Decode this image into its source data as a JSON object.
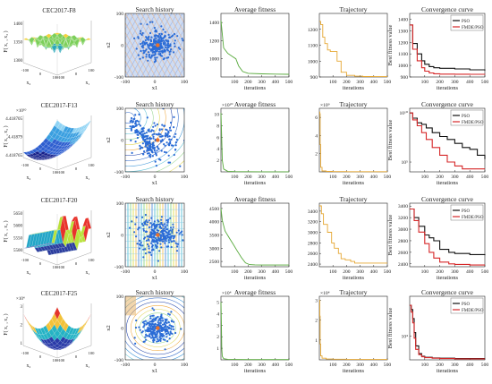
{
  "chart_data": [
    {
      "row": 0,
      "function_title": "CEC2017-F8",
      "surface_zlabel": "F( x₁ , x₂ )",
      "surface_ticks": [
        "1400",
        "1350",
        "1300"
      ],
      "surface_xticks": [
        "-100",
        "0",
        "100",
        "-100",
        "0",
        "100"
      ],
      "surface_axis_labels": [
        "x₂",
        "x₁"
      ],
      "surface_colors": [
        "#2c56c7",
        "#2aa7b9",
        "#7ccf5a",
        "#f5d13c"
      ],
      "history": {
        "title": "Search history",
        "xlabel": "x1",
        "ylabel": "x2",
        "xticks": [
          "-100",
          "0",
          "100"
        ],
        "yticks": [
          "100",
          "0",
          "-100"
        ],
        "spread": 22
      },
      "average_fitness": {
        "title": "Average fitness",
        "type": "line",
        "color": "#56a93a",
        "xlabel": "iterations",
        "x": [
          0,
          20,
          50,
          80,
          110,
          130,
          160,
          200,
          300,
          400,
          500
        ],
        "y": [
          1420,
          1120,
          1060,
          1030,
          1000,
          920,
          860,
          840,
          835,
          832,
          830
        ],
        "ylim": [
          800,
          1500
        ],
        "yticks": [
          "1400",
          "1200",
          "1000"
        ],
        "xticks": [
          "100",
          "200",
          "300",
          "400",
          "500"
        ]
      },
      "trajectory": {
        "title": "Trajectory",
        "type": "line",
        "color": "#e5a630",
        "xlabel": "iterations",
        "x": [
          0,
          10,
          25,
          40,
          60,
          80,
          100,
          130,
          160,
          200,
          260,
          320,
          400,
          500
        ],
        "y": [
          1250,
          1230,
          1150,
          1110,
          1070,
          1060,
          1060,
          1000,
          930,
          910,
          905,
          903,
          902,
          902
        ],
        "ylim": [
          900,
          1300
        ],
        "yticks": [
          "1200",
          "1100",
          "1000",
          "900"
        ],
        "xticks": [
          "100",
          "200",
          "300",
          "400",
          "500"
        ]
      },
      "convergence": {
        "title": "Convergence curve",
        "type": "line",
        "ylabel": "Best fitness value",
        "xlabel": "iterations",
        "legend": [
          "PSO",
          "FMDE/PSO"
        ],
        "x": [
          0,
          20,
          50,
          80,
          100,
          130,
          160,
          200,
          300,
          400,
          500
        ],
        "series": [
          {
            "name": "PSO",
            "color": "#111111",
            "values": [
              1350,
              1190,
              1100,
              1040,
              1010,
              990,
              980,
              975,
              970,
              962,
              955
            ]
          },
          {
            "name": "FMDE/PSO",
            "color": "#d62728",
            "values": [
              1350,
              1140,
              1040,
              980,
              950,
              935,
              928,
              925,
              924,
              923,
              922
            ]
          }
        ],
        "ylim": [
          900,
          1450
        ],
        "yticks": [
          "1400",
          "1300",
          "1200",
          "1100",
          "1000",
          "900"
        ],
        "xticks": [
          "100",
          "200",
          "300",
          "400",
          "500"
        ]
      }
    },
    {
      "row": 1,
      "function_title": "CEC2017-F13",
      "surface_zlabel": "F( x₁ , x₂ )",
      "surface_exponent": "×10¹⁰",
      "surface_ticks": [
        "4.418705",
        "4.41879",
        "4.418765"
      ],
      "surface_xticks": [
        "-100",
        "0",
        "100",
        "-100",
        "0",
        "100"
      ],
      "surface_axis_labels": [
        "x₂",
        "x₁"
      ],
      "surface_colors": [
        "#16208a",
        "#2f5fd0",
        "#3a9fe0",
        "#8fd3f4"
      ],
      "history": {
        "title": "Search history",
        "xlabel": "x1",
        "ylabel": "x2",
        "xticks": [
          "-100",
          "0",
          "100"
        ],
        "yticks": [
          "100",
          "0",
          "-100"
        ],
        "spread": 30
      },
      "average_fitness": {
        "title": "Average fitness",
        "type": "line",
        "color": "#56a93a",
        "xlabel": "iterations",
        "exponent": "×10¹⁰",
        "x": [
          0,
          5,
          10,
          20,
          50,
          100,
          200,
          300,
          400,
          500
        ],
        "y": [
          10.2,
          6.0,
          2.0,
          0.5,
          0.1,
          0.05,
          0.03,
          0.02,
          0.02,
          0.02
        ],
        "ylim": [
          0,
          11
        ],
        "yticks": [
          "10",
          "8",
          "6",
          "4",
          "2"
        ],
        "xticks": [
          "100",
          "200",
          "300",
          "400",
          "500"
        ]
      },
      "trajectory": {
        "title": "Trajectory",
        "type": "line",
        "color": "#e5a630",
        "xlabel": "iterations",
        "exponent": "×10⁹",
        "x": [
          0,
          3,
          6,
          10,
          20,
          50,
          100,
          200,
          300,
          400,
          500
        ],
        "y": [
          6.6,
          6.4,
          3.0,
          0.5,
          0.1,
          0.05,
          0.03,
          0.02,
          0.02,
          0.02,
          0.02
        ],
        "ylim": [
          0,
          7
        ],
        "yticks": [
          "6",
          "4",
          "2"
        ],
        "xticks": [
          "100",
          "200",
          "300",
          "400",
          "500"
        ]
      },
      "convergence": {
        "title": "Convergence curve",
        "type": "line",
        "ylabel": "Best fitness value",
        "xlabel": "iterations",
        "yscale": "log",
        "legend": [
          "PSO",
          "FMDE/PSO"
        ],
        "x": [
          0,
          20,
          50,
          80,
          110,
          150,
          200,
          250,
          300,
          350,
          400,
          450,
          500
        ],
        "series": [
          {
            "name": "PSO",
            "color": "#111111",
            "values": [
              10000000000,
              3000000000,
              1000000000,
              700000000,
              300000000,
              100000000,
              40000000,
              20000000,
              8000000,
              3000000,
              2000000,
              500000,
              200000
            ]
          },
          {
            "name": "FMDE/PSO",
            "color": "#d62728",
            "values": [
              10000000000,
              2000000000,
              500000000,
              100000000,
              20000000,
              3000000,
              500000,
              100000,
              40000,
              20000,
              20000,
              20000,
              20000
            ]
          }
        ],
        "ylim": [
          10000,
          30000000000
        ],
        "yticks": [
          "10¹⁰",
          "10⁵"
        ],
        "xticks": [
          "100",
          "200",
          "300",
          "400",
          "500"
        ]
      }
    },
    {
      "row": 2,
      "function_title": "CEC2017-F20",
      "surface_zlabel": "F( x₁ , x₂ )",
      "surface_ticks": [
        "5650",
        "5600",
        "5550",
        "5500"
      ],
      "surface_xticks": [
        "-100",
        "0",
        "100",
        "-100",
        "0",
        "100"
      ],
      "surface_axis_labels": [
        "x₂",
        "x₁"
      ],
      "surface_colors": [
        "#2c3d9e",
        "#23a6c7",
        "#b8e23a",
        "#e8322b"
      ],
      "history": {
        "title": "Search history",
        "xlabel": "x1",
        "ylabel": "x2",
        "xticks": [
          "-100",
          "0",
          "100"
        ],
        "yticks": [
          "100",
          "0",
          "-100"
        ],
        "spread": 26
      },
      "average_fitness": {
        "title": "Average fitness",
        "type": "line",
        "color": "#56a93a",
        "xlabel": "iterations",
        "x": [
          0,
          10,
          30,
          60,
          90,
          120,
          150,
          180,
          210,
          250,
          300,
          400,
          500
        ],
        "y": [
          4500,
          4050,
          3650,
          3400,
          3150,
          2900,
          2650,
          2450,
          2380,
          2370,
          2365,
          2365,
          2365
        ],
        "ylim": [
          2300,
          4700
        ],
        "yticks": [
          "4500",
          "4000",
          "3500",
          "3000",
          "2500"
        ],
        "xticks": [
          "100",
          "200",
          "300",
          "400",
          "500"
        ]
      },
      "trajectory": {
        "title": "Trajectory",
        "type": "line",
        "color": "#e5a630",
        "xlabel": "iterations",
        "x": [
          0,
          15,
          30,
          60,
          90,
          110,
          140,
          160,
          190,
          230,
          260,
          300,
          400,
          500
        ],
        "y": [
          3500,
          3350,
          3150,
          3000,
          2800,
          2700,
          2600,
          2500,
          2480,
          2450,
          2420,
          2420,
          2420,
          2420
        ],
        "ylim": [
          2350,
          3550
        ],
        "yticks": [
          "3400",
          "3200",
          "3000",
          "2800",
          "2600",
          "2400"
        ],
        "xticks": [
          "100",
          "200",
          "300",
          "400",
          "500"
        ]
      },
      "convergence": {
        "title": "Convergence curve",
        "type": "line",
        "ylabel": "Best fitness value",
        "xlabel": "iterations",
        "legend": [
          "PSO",
          "FMDE/PSO"
        ],
        "x": [
          0,
          30,
          60,
          100,
          130,
          160,
          200,
          260,
          300,
          400,
          500
        ],
        "series": [
          {
            "name": "PSO",
            "color": "#111111",
            "values": [
              3350,
              3200,
              3050,
              2900,
              2850,
              2800,
              2650,
              2600,
              2580,
              2560,
              2550
            ]
          },
          {
            "name": "FMDE/PSO",
            "color": "#d62728",
            "values": [
              3350,
              3150,
              2950,
              2750,
              2600,
              2500,
              2430,
              2400,
              2390,
              2380,
              2380
            ]
          }
        ],
        "ylim": [
          2350,
          3450
        ],
        "yticks": [
          "3400",
          "3200",
          "3000",
          "2800",
          "2600",
          "2400"
        ],
        "xticks": [
          "100",
          "200",
          "300",
          "400",
          "500"
        ]
      }
    },
    {
      "row": 3,
      "function_title": "CEC2017-F25",
      "surface_zlabel": "F( x₁ , x₂ )",
      "surface_exponent": "×10⁴",
      "surface_ticks": [
        "3",
        "2",
        "1"
      ],
      "surface_xticks": [
        "-100",
        "0",
        "100",
        "-100",
        "0",
        "100"
      ],
      "surface_axis_labels": [
        "x₂",
        "x₁"
      ],
      "surface_colors": [
        "#2a3aa8",
        "#25b3c5",
        "#f2c23a",
        "#e4342a"
      ],
      "history": {
        "title": "Search history",
        "xlabel": "x1",
        "ylabel": "x2",
        "xticks": [
          "-100",
          "0",
          "100"
        ],
        "yticks": [
          "100",
          "0",
          "-100"
        ],
        "spread": 20
      },
      "average_fitness": {
        "title": "Average fitness",
        "type": "line",
        "color": "#56a93a",
        "xlabel": "iterations",
        "exponent": "×10⁴",
        "x": [
          0,
          3,
          6,
          10,
          20,
          50,
          100,
          200,
          300,
          400,
          500
        ],
        "y": [
          5.0,
          3.0,
          1.0,
          0.3,
          0.1,
          0.05,
          0.03,
          0.02,
          0.02,
          0.02,
          0.02
        ],
        "ylim": [
          0,
          5.5
        ],
        "yticks": [
          "5",
          "4",
          "3",
          "2",
          "1"
        ],
        "xticks": [
          "100",
          "200",
          "300",
          "400",
          "500"
        ]
      },
      "trajectory": {
        "title": "Trajectory",
        "type": "line",
        "color": "#e5a630",
        "xlabel": "iterations",
        "exponent": "×10⁴",
        "x": [
          0,
          3,
          6,
          10,
          20,
          50,
          100,
          200,
          300,
          400,
          500
        ],
        "y": [
          3.0,
          2.2,
          0.8,
          0.2,
          0.08,
          0.04,
          0.03,
          0.02,
          0.02,
          0.02,
          0.02
        ],
        "ylim": [
          0,
          3.2
        ],
        "yticks": [
          "3",
          "2",
          "1"
        ],
        "xticks": [
          "100",
          "200",
          "300",
          "400",
          "500"
        ]
      },
      "convergence": {
        "title": "Convergence curve",
        "type": "line",
        "ylabel": "Best fitness value",
        "xlabel": "iterations",
        "yscale": "log",
        "legend": [
          "PSO",
          "FMDE/PSO"
        ],
        "x": [
          0,
          10,
          20,
          30,
          40,
          60,
          80,
          100,
          150,
          200,
          300,
          400,
          500
        ],
        "series": [
          {
            "name": "PSO",
            "color": "#111111",
            "values": [
              50000,
              40000,
              25000,
              12000,
              6000,
              4000,
              3500,
              3300,
              3200,
              3150,
              3100,
              3100,
              3100
            ]
          },
          {
            "name": "FMDE/PSO",
            "color": "#d62728",
            "values": [
              50000,
              35000,
              20000,
              9000,
              5000,
              3800,
              3400,
              3250,
              3150,
              3100,
              3050,
              3050,
              3050
            ]
          }
        ],
        "ylim": [
          2900,
          80000
        ],
        "yticks": [
          "10⁴"
        ],
        "xticks": [
          "100",
          "200",
          "300",
          "400",
          "500"
        ]
      }
    }
  ]
}
